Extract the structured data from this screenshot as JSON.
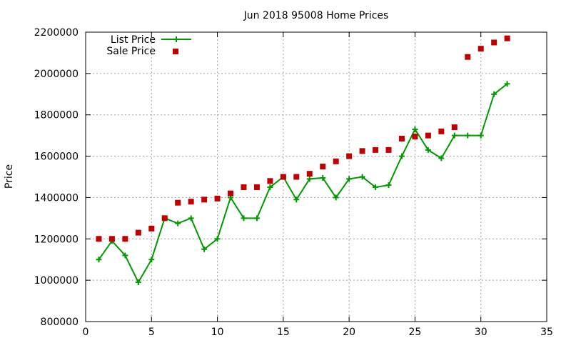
{
  "chart_data": {
    "type": "line",
    "title": "Jun 2018 95008 Home Prices",
    "xlabel": "",
    "ylabel": "Price",
    "xlim": [
      0,
      35
    ],
    "ylim": [
      800000,
      2200000
    ],
    "xticks": [
      0,
      5,
      10,
      15,
      20,
      25,
      30,
      35
    ],
    "yticks": [
      800000,
      1000000,
      1200000,
      1400000,
      1600000,
      1800000,
      2000000,
      2200000
    ],
    "grid": true,
    "legend_position": "top-left",
    "series": [
      {
        "name": "List Price",
        "style": "line-plus",
        "color": "#009900",
        "x": [
          1,
          2,
          3,
          4,
          5,
          6,
          7,
          8,
          9,
          10,
          11,
          12,
          13,
          14,
          15,
          16,
          17,
          18,
          19,
          20,
          21,
          22,
          23,
          24,
          25,
          26,
          27,
          28,
          29,
          30,
          31,
          32
        ],
        "y": [
          1100000,
          1190000,
          1120000,
          990000,
          1100000,
          1300000,
          1275000,
          1300000,
          1150000,
          1200000,
          1400000,
          1300000,
          1300000,
          1450000,
          1500000,
          1390000,
          1490000,
          1495000,
          1400000,
          1490000,
          1500000,
          1450000,
          1460000,
          1600000,
          1730000,
          1630000,
          1590000,
          1700000,
          1700000,
          1700000,
          1900000,
          1950000
        ]
      },
      {
        "name": "Sale Price",
        "style": "square",
        "color": "#c00000",
        "x": [
          1,
          2,
          3,
          4,
          5,
          6,
          7,
          8,
          9,
          10,
          11,
          12,
          13,
          14,
          15,
          16,
          17,
          18,
          19,
          20,
          21,
          22,
          23,
          24,
          25,
          26,
          27,
          28,
          29,
          30,
          31,
          32
        ],
        "y": [
          1200000,
          1200000,
          1200000,
          1230000,
          1250000,
          1300000,
          1375000,
          1380000,
          1390000,
          1395000,
          1420000,
          1450000,
          1450000,
          1480000,
          1500000,
          1500000,
          1515000,
          1550000,
          1575000,
          1600000,
          1625000,
          1630000,
          1630000,
          1685000,
          1695000,
          1700000,
          1720000,
          1740000,
          2080000,
          2120000,
          2150000,
          2170000
        ]
      }
    ]
  }
}
